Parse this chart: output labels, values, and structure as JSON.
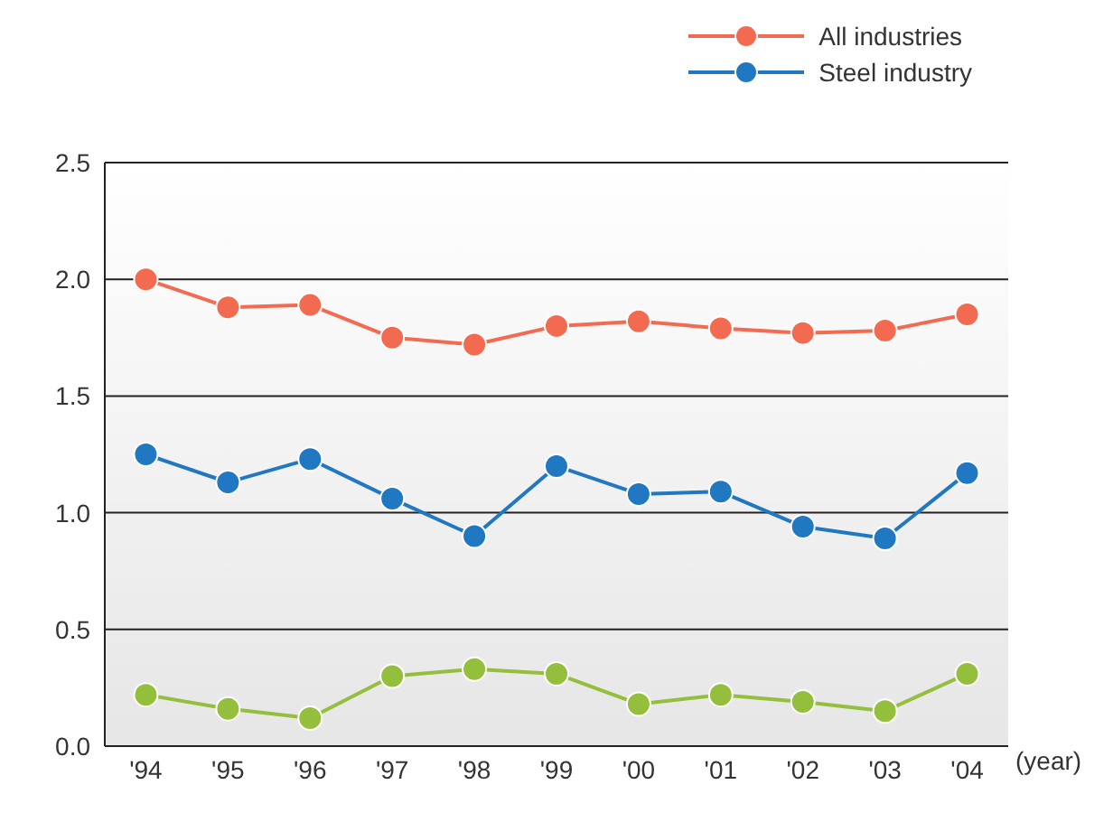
{
  "chart_data": {
    "type": "line",
    "xlabel": "(year)",
    "categories": [
      "'94",
      "'95",
      "'96",
      "'97",
      "'98",
      "'99",
      "'00",
      "'01",
      "'02",
      "'03",
      "'04"
    ],
    "series": [
      {
        "name": "All industries",
        "color": "#f26b50",
        "values": [
          2.0,
          1.88,
          1.89,
          1.75,
          1.72,
          1.8,
          1.82,
          1.79,
          1.77,
          1.78,
          1.85
        ]
      },
      {
        "name": "Steel industry",
        "color": "#1f78c1",
        "values": [
          1.25,
          1.13,
          1.23,
          1.06,
          0.9,
          1.2,
          1.08,
          1.09,
          0.94,
          0.89,
          1.17
        ]
      },
      {
        "color": "#94bf3c",
        "values": [
          0.22,
          0.16,
          0.12,
          0.3,
          0.33,
          0.31,
          0.18,
          0.22,
          0.19,
          0.15,
          0.31
        ]
      }
    ],
    "ylim": [
      0,
      2.5
    ],
    "yticks": [
      {
        "value": 0,
        "label": "0.0"
      },
      {
        "value": 0.5,
        "label": "0.5"
      },
      {
        "value": 1,
        "label": "1.0"
      },
      {
        "value": 1.5,
        "label": "1.5"
      },
      {
        "value": 2,
        "label": "2.0"
      },
      {
        "value": 2.5,
        "label": "2.5"
      }
    ],
    "grid": "y",
    "legend": "top right",
    "marker": "circle",
    "line_style": "solid"
  }
}
